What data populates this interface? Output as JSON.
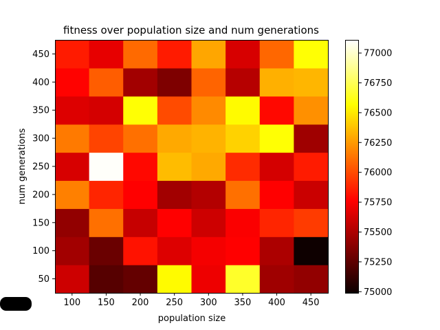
{
  "chart_data": {
    "type": "heatmap",
    "title": "fitness over population size and num generations",
    "xlabel": "population size",
    "ylabel": "num generations",
    "x": [
      100,
      150,
      200,
      250,
      300,
      350,
      400,
      450
    ],
    "y": [
      50,
      100,
      150,
      200,
      250,
      300,
      350,
      400,
      450
    ],
    "values": [
      [
        75580,
        75220,
        75260,
        76560,
        75680,
        76660,
        75440,
        75400
      ],
      [
        75450,
        75280,
        75820,
        75630,
        75700,
        75740,
        75480,
        75000
      ],
      [
        75400,
        76120,
        75560,
        75740,
        75580,
        75720,
        75880,
        75950
      ],
      [
        76170,
        75880,
        75760,
        75450,
        75500,
        76120,
        75760,
        75570
      ],
      [
        75610,
        77100,
        75790,
        76360,
        76300,
        75900,
        75600,
        75850
      ],
      [
        76150,
        75980,
        76120,
        76300,
        76330,
        76430,
        76580,
        75440
      ],
      [
        75630,
        75600,
        76580,
        76000,
        76200,
        76560,
        75790,
        76220
      ],
      [
        75770,
        76060,
        75450,
        75340,
        76080,
        75510,
        76320,
        76340
      ],
      [
        75850,
        75660,
        76100,
        75850,
        76290,
        75610,
        76090,
        76580
      ]
    ],
    "colorbar": {
      "min": 74990,
      "max": 77110,
      "ticks": [
        75000,
        75250,
        75500,
        75750,
        76000,
        76250,
        76500,
        76750,
        77000
      ]
    },
    "colormap": "hot"
  }
}
